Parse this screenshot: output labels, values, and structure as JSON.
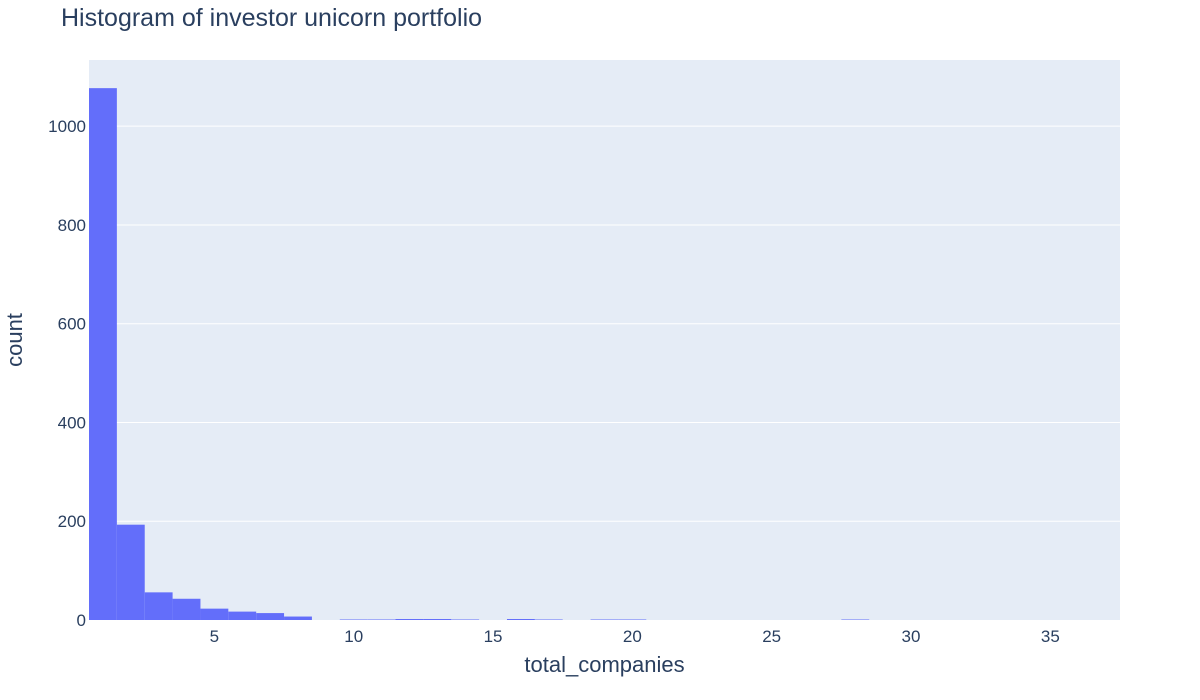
{
  "chart_data": {
    "type": "bar",
    "subtype": "histogram",
    "title": "Histogram of investor unicorn portfolio",
    "xlabel": "total_companies",
    "ylabel": "count",
    "bin_size": 1,
    "bins": [
      {
        "start": 0.5,
        "end": 1.5,
        "count": 1077
      },
      {
        "start": 1.5,
        "end": 2.5,
        "count": 193
      },
      {
        "start": 2.5,
        "end": 3.5,
        "count": 56
      },
      {
        "start": 3.5,
        "end": 4.5,
        "count": 43
      },
      {
        "start": 4.5,
        "end": 5.5,
        "count": 23
      },
      {
        "start": 5.5,
        "end": 6.5,
        "count": 17
      },
      {
        "start": 6.5,
        "end": 7.5,
        "count": 14
      },
      {
        "start": 7.5,
        "end": 8.5,
        "count": 7
      },
      {
        "start": 9.5,
        "end": 10.5,
        "count": 1
      },
      {
        "start": 10.5,
        "end": 11.5,
        "count": 1
      },
      {
        "start": 11.5,
        "end": 12.5,
        "count": 2
      },
      {
        "start": 12.5,
        "end": 13.5,
        "count": 2
      },
      {
        "start": 13.5,
        "end": 14.5,
        "count": 1
      },
      {
        "start": 15.5,
        "end": 16.5,
        "count": 2
      },
      {
        "start": 16.5,
        "end": 17.5,
        "count": 1
      },
      {
        "start": 18.5,
        "end": 19.5,
        "count": 1
      },
      {
        "start": 19.5,
        "end": 20.5,
        "count": 1
      },
      {
        "start": 27.5,
        "end": 28.5,
        "count": 1
      }
    ],
    "xlim": [
      0.5,
      37.5
    ],
    "ylim": [
      0,
      1134
    ],
    "x_ticks": [
      5,
      10,
      15,
      20,
      25,
      30,
      35
    ],
    "y_ticks": [
      0,
      200,
      400,
      600,
      800,
      1000
    ],
    "grid": true,
    "legend": "none",
    "colors": {
      "bar": "#636efa",
      "plot_background": "#e5ecf6",
      "gridline": "#ffffff",
      "text": "#2a3f5f"
    }
  }
}
